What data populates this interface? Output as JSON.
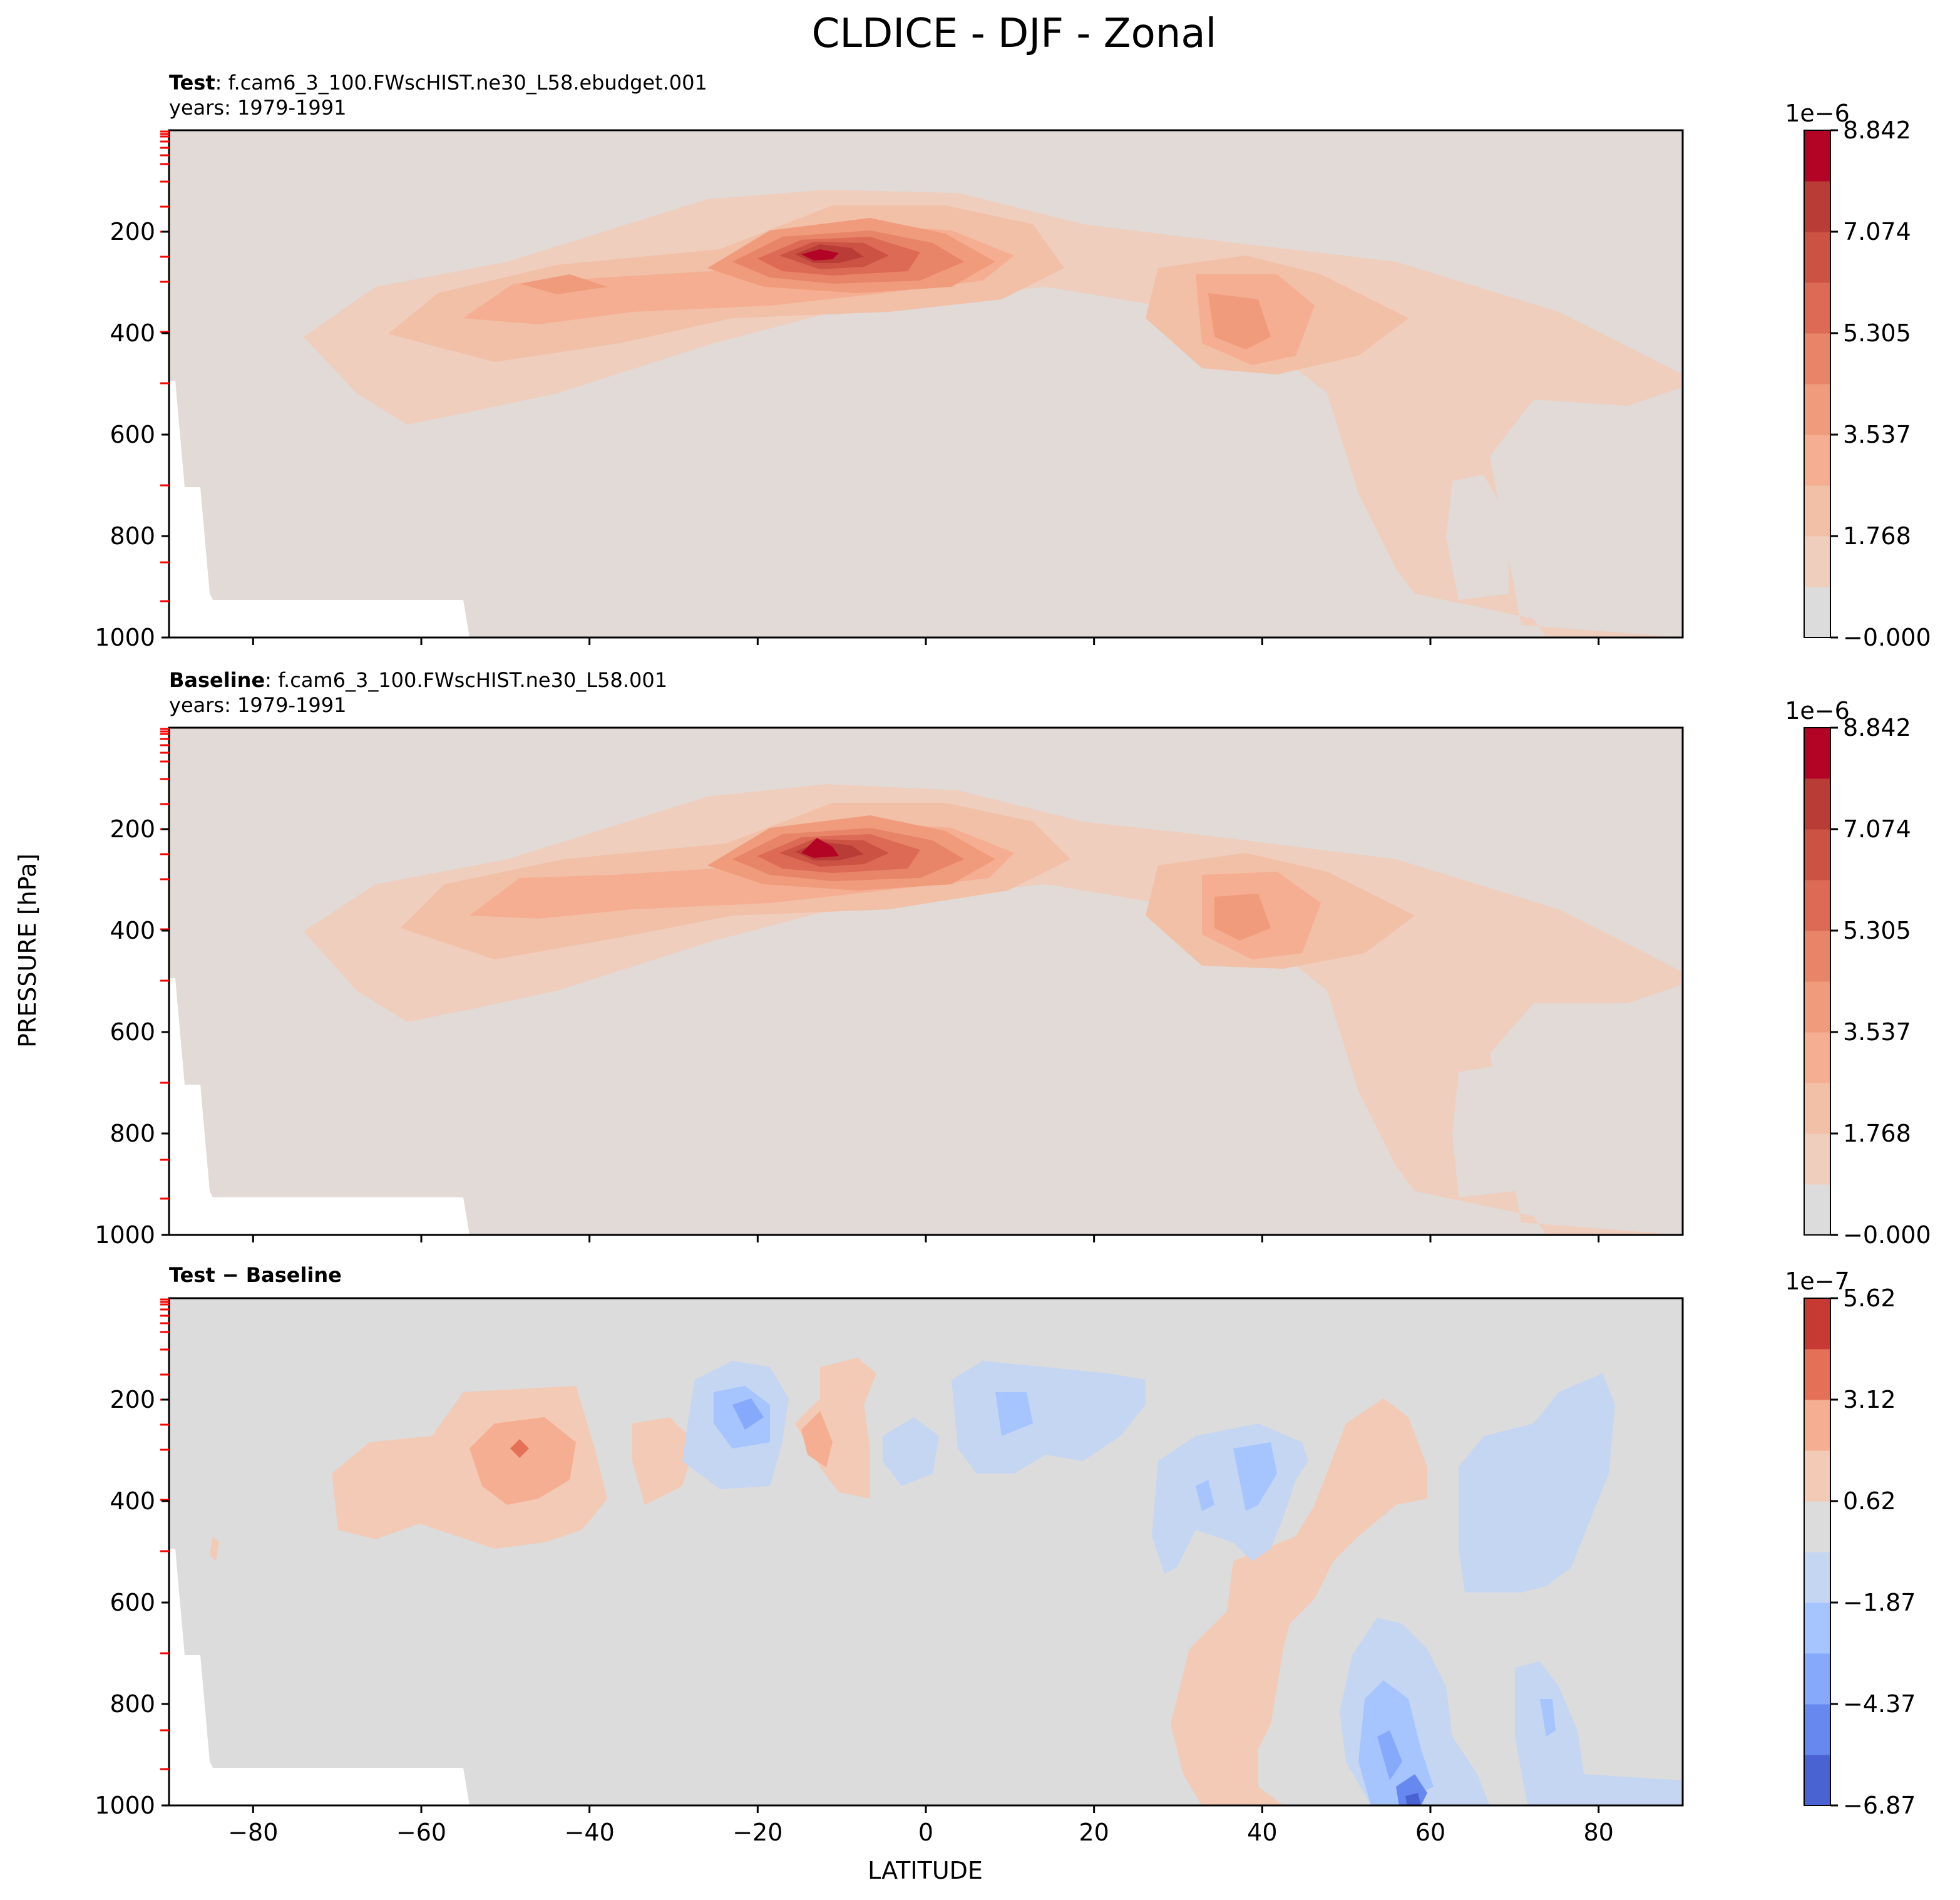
{
  "title": "CLDICE - DJF - Zonal",
  "xlabel": "LATITUDE",
  "ylabel": "PRESSURE [hPa]",
  "panels": [
    {
      "title_bold": "Test",
      "title_rest": ": f.cam6_3_100.FWscHIST.ne30_L58.ebudget.001",
      "subtitle": "years: 1979-1991",
      "colorbar": {
        "exponent": "1e−6",
        "ticks": [
          "−0.000",
          "1.768",
          "3.537",
          "5.305",
          "7.074",
          "8.842"
        ],
        "colors": [
          "#dddcdc",
          "#efcebd",
          "#f2bfa7",
          "#f5ae91",
          "#f09b7c",
          "#e88468",
          "#dc6a55",
          "#cc5244",
          "#b93c36",
          "#b40426"
        ]
      }
    },
    {
      "title_bold": "Baseline",
      "title_rest": ": f.cam6_3_100.FWscHIST.ne30_L58.001",
      "subtitle": "years: 1979-1991",
      "colorbar": {
        "exponent": "1e−6",
        "ticks": [
          "−0.000",
          "1.768",
          "3.537",
          "5.305",
          "7.074",
          "8.842"
        ],
        "colors": [
          "#dddcdc",
          "#efcebd",
          "#f2bfa7",
          "#f5ae91",
          "#f09b7c",
          "#e88468",
          "#dc6a55",
          "#cc5244",
          "#b93c36",
          "#b40426"
        ]
      }
    },
    {
      "title_bold": "Test − Baseline",
      "title_rest": "",
      "subtitle": "",
      "colorbar": {
        "exponent": "1e−7",
        "ticks": [
          "−6.87",
          "−4.37",
          "−1.87",
          "0.62",
          "3.12",
          "5.62"
        ],
        "colors": [
          "#4a63d3",
          "#6788ee",
          "#86a9fc",
          "#a6c4fe",
          "#c5d6f2",
          "#dddcdc",
          "#f2cab5",
          "#f5ae91",
          "#e57058",
          "#c73a33"
        ]
      }
    }
  ],
  "chart_data": {
    "type": "heatmap",
    "subtype": "filled-contour",
    "x_axis": {
      "label": "LATITUDE",
      "range": [
        -90,
        90
      ],
      "ticks": [
        -80,
        -60,
        -40,
        -20,
        0,
        20,
        40,
        60,
        80
      ]
    },
    "y_axis": {
      "label": "PRESSURE [hPa]",
      "range": [
        1000,
        0
      ],
      "inverted": true,
      "ticks": [
        200,
        400,
        600,
        800,
        1000
      ]
    },
    "panels": [
      {
        "name": "Test",
        "units_scale": "1e-6",
        "levels": [
          -0.0,
          1.768,
          3.537,
          5.305,
          7.074,
          8.842
        ],
        "features": [
          {
            "region": "tropical upper-tropospheric maximum",
            "lat": -12,
            "pressure": 240,
            "value": 9.3
          },
          {
            "region": "southern mid-latitude maximum",
            "lat": -45,
            "pressure": 300,
            "value": 3.5
          },
          {
            "region": "northern mid-latitude maximum",
            "lat": 37,
            "pressure": 390,
            "value": 5.0
          },
          {
            "region": "high northern latitude lower troposphere",
            "lat": 75,
            "pressure": 960,
            "value": 2.5
          }
        ]
      },
      {
        "name": "Baseline",
        "units_scale": "1e-6",
        "levels": [
          -0.0,
          1.768,
          3.537,
          5.305,
          7.074,
          8.842
        ],
        "features": [
          {
            "region": "tropical upper-tropospheric maximum",
            "lat": -12,
            "pressure": 240,
            "value": 9.3
          },
          {
            "region": "southern mid-latitude maximum",
            "lat": -45,
            "pressure": 300,
            "value": 3.5
          },
          {
            "region": "northern mid-latitude maximum",
            "lat": 37,
            "pressure": 380,
            "value": 5.2
          },
          {
            "region": "high northern latitude lower troposphere",
            "lat": 75,
            "pressure": 960,
            "value": 2.5
          }
        ]
      },
      {
        "name": "Test − Baseline",
        "units_scale": "1e-7",
        "levels": [
          -6.87,
          -4.37,
          -1.87,
          0.62,
          3.12,
          5.62
        ],
        "features": [
          {
            "region": "southern mid-latitude positive",
            "lat": -48,
            "pressure": 310,
            "value": 3.5
          },
          {
            "region": "southern subtropics negative",
            "lat": -20,
            "pressure": 250,
            "value": -4.0
          },
          {
            "region": "tropics positive",
            "lat": -13,
            "pressure": 260,
            "value": 2.0
          },
          {
            "region": "northern tropics negative",
            "lat": 8,
            "pressure": 250,
            "value": -2.5
          },
          {
            "region": "northern mid-latitude negative",
            "lat": 36,
            "pressure": 370,
            "value": -3.0
          },
          {
            "region": "northern mid-latitude positive",
            "lat": 50,
            "pressure": 500,
            "value": 1.5
          },
          {
            "region": "high latitude lower troposphere negative",
            "lat": 60,
            "pressure": 940,
            "value": -6.0
          },
          {
            "region": "polar mid troposphere negative",
            "lat": 75,
            "pressure": 450,
            "value": -1.5
          }
        ]
      }
    ]
  }
}
